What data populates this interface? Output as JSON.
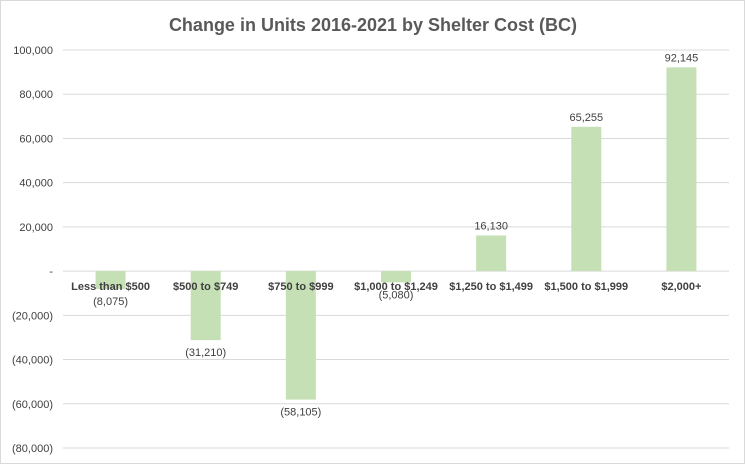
{
  "chart_data": {
    "type": "bar",
    "title": "Change in Units 2016-2021 by Shelter Cost (BC)",
    "xlabel": "",
    "ylabel": "",
    "categories": [
      "Less than $500",
      "$500 to $749",
      "$750 to $999",
      "$1,000 to $1,249",
      "$1,250 to $1,499",
      "$1,500 to $1,999",
      "$2,000+"
    ],
    "values": [
      -8075,
      -31210,
      -58105,
      -5080,
      16130,
      65255,
      92145
    ],
    "data_labels": [
      "(8,075)",
      "(31,210)",
      "(58,105)",
      "(5,080)",
      "16,130",
      "65,255",
      "92,145"
    ],
    "ylim": [
      -80000,
      100000
    ],
    "yticks": [
      100000,
      80000,
      60000,
      40000,
      20000,
      0,
      -20000,
      -40000,
      -60000,
      -80000
    ],
    "ytick_labels": [
      "100,000",
      "80,000",
      "60,000",
      "40,000",
      "20,000",
      "-",
      "(20,000)",
      "(40,000)",
      "(60,000)",
      "(80,000)"
    ],
    "grid": true,
    "legend": "none",
    "bar_color": "#c5e0b4"
  }
}
